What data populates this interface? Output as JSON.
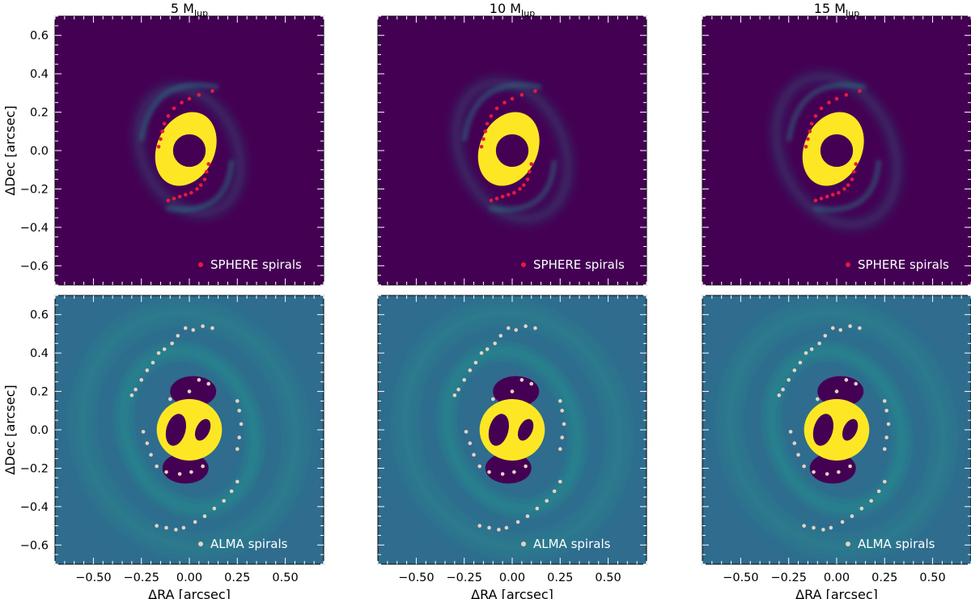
{
  "figure": {
    "ylabel": "ΔDec [arcsec]",
    "xlabel": "ΔRA [arcsec]"
  },
  "columns": [
    {
      "title_main": "5 M",
      "title_sub": "Jup"
    },
    {
      "title_main": "10 M",
      "title_sub": "Jup"
    },
    {
      "title_main": "15 M",
      "title_sub": "Jup"
    }
  ],
  "rows": [
    {
      "legend": "SPHERE spirals",
      "marker_color": "#e8193c",
      "background": "#440154"
    },
    {
      "legend": "ALMA spirals",
      "marker_color": "#e6d2c3",
      "background": "#2f6c8e"
    }
  ],
  "colors": {
    "viridis_low": "#440154",
    "viridis_mid": "#21918c",
    "viridis_high": "#fde725"
  },
  "chart_data": {
    "type": "scatter",
    "xlim": [
      -0.7,
      0.7
    ],
    "ylim": [
      -0.7,
      0.7
    ],
    "x_ticks": [
      -0.5,
      -0.25,
      0.0,
      0.25,
      0.5
    ],
    "x_tick_labels": [
      "−0.50",
      "−0.25",
      "0.00",
      "0.25",
      "0.50"
    ],
    "y_ticks": [
      0.6,
      0.4,
      0.2,
      0.0,
      -0.2,
      -0.4,
      -0.6
    ],
    "y_tick_labels": [
      "0.6",
      "0.4",
      "0.2",
      "0.0",
      "−0.2",
      "−0.4",
      "−0.6"
    ],
    "grid": false,
    "legend_position": "bottom-right",
    "series": [
      {
        "name": "SPHERE spirals",
        "points": [
          [
            0.12,
            0.31
          ],
          [
            0.05,
            0.29
          ],
          [
            0.0,
            0.27
          ],
          [
            -0.04,
            0.25
          ],
          [
            -0.08,
            0.22
          ],
          [
            -0.11,
            0.18
          ],
          [
            -0.13,
            0.14
          ],
          [
            -0.14,
            0.1
          ],
          [
            -0.15,
            0.06
          ],
          [
            -0.16,
            0.02
          ],
          [
            0.1,
            -0.07
          ],
          [
            0.09,
            -0.11
          ],
          [
            0.08,
            -0.15
          ],
          [
            0.06,
            -0.18
          ],
          [
            0.04,
            -0.2
          ],
          [
            0.01,
            -0.22
          ],
          [
            -0.02,
            -0.23
          ],
          [
            -0.05,
            -0.24
          ],
          [
            -0.08,
            -0.25
          ],
          [
            -0.11,
            -0.26
          ]
        ]
      },
      {
        "name": "ALMA spirals",
        "points": [
          [
            0.12,
            0.53
          ],
          [
            0.07,
            0.54
          ],
          [
            0.02,
            0.52
          ],
          [
            -0.02,
            0.53
          ],
          [
            -0.06,
            0.49
          ],
          [
            -0.09,
            0.45
          ],
          [
            -0.13,
            0.42
          ],
          [
            -0.16,
            0.4
          ],
          [
            -0.19,
            0.35
          ],
          [
            -0.22,
            0.31
          ],
          [
            -0.25,
            0.26
          ],
          [
            -0.28,
            0.21
          ],
          [
            -0.3,
            0.18
          ],
          [
            0.1,
            0.24
          ],
          [
            0.05,
            0.26
          ],
          [
            0.0,
            0.2
          ],
          [
            -0.1,
            0.16
          ],
          [
            0.25,
            0.15
          ],
          [
            0.26,
            0.1
          ],
          [
            0.27,
            0.03
          ],
          [
            0.26,
            -0.04
          ],
          [
            0.25,
            -0.1
          ],
          [
            -0.24,
            -0.01
          ],
          [
            -0.22,
            -0.07
          ],
          [
            -0.2,
            -0.13
          ],
          [
            -0.17,
            -0.19
          ],
          [
            -0.12,
            -0.22
          ],
          [
            -0.05,
            -0.23
          ],
          [
            0.01,
            -0.22
          ],
          [
            0.07,
            -0.19
          ],
          [
            0.25,
            -0.27
          ],
          [
            0.22,
            -0.32
          ],
          [
            0.18,
            -0.37
          ],
          [
            0.13,
            -0.41
          ],
          [
            0.08,
            -0.45
          ],
          [
            0.03,
            -0.48
          ],
          [
            -0.03,
            -0.51
          ],
          [
            -0.07,
            -0.52
          ],
          [
            -0.12,
            -0.51
          ],
          [
            -0.17,
            -0.5
          ]
        ]
      }
    ]
  }
}
